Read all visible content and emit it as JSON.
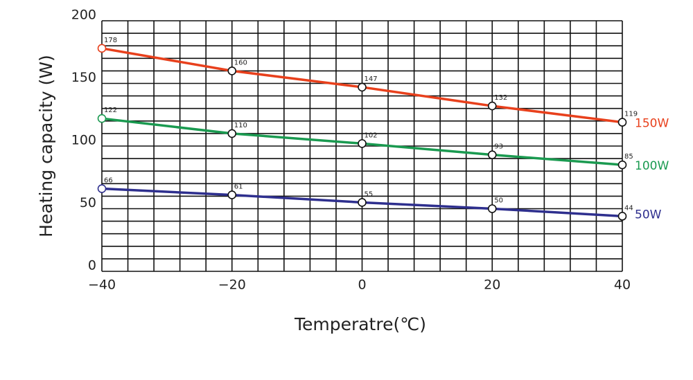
{
  "chart_data": {
    "type": "line",
    "x_label": "Temperatre(℃)",
    "y_label": "Heating capacity (W)",
    "x": [
      -40,
      -20,
      0,
      20,
      40
    ],
    "series": [
      {
        "name": "150W",
        "color": "#e8401c",
        "values": [
          178,
          160,
          147,
          132,
          119
        ]
      },
      {
        "name": "100W",
        "color": "#1a9a50",
        "values": [
          122,
          110,
          102,
          93,
          85
        ]
      },
      {
        "name": "50W",
        "color": "#2e2f8e",
        "values": [
          66,
          61,
          55,
          50,
          44
        ]
      }
    ],
    "xlim": [
      -40,
      40
    ],
    "xticks": [
      {
        "value": -40,
        "label": "−40"
      },
      {
        "value": -20,
        "label": "−20"
      },
      0,
      20,
      40
    ],
    "ylim": [
      0,
      200
    ],
    "yticks": [
      0,
      50,
      100,
      150,
      200
    ],
    "xgrid": [
      -40,
      -36,
      -32,
      -28,
      -24,
      -20,
      -16,
      -12,
      -8,
      -4,
      0,
      4,
      8,
      12,
      16,
      20,
      24,
      28,
      32,
      36,
      40
    ],
    "ygrid": [
      0,
      10,
      20,
      30,
      40,
      50,
      60,
      70,
      80,
      90,
      100,
      110,
      120,
      130,
      140,
      150,
      160,
      170,
      180,
      190,
      200
    ],
    "grid": true
  }
}
